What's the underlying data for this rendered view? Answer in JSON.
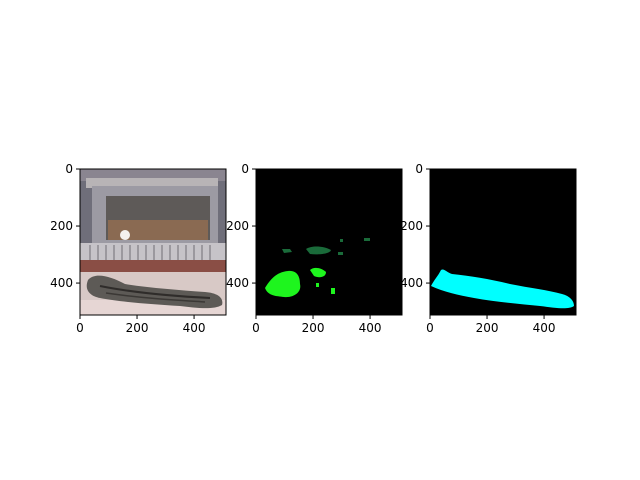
{
  "figure": {
    "panels": [
      {
        "content": "photo",
        "xticks": [
          "0",
          "200",
          "400"
        ],
        "yticks": [
          "0",
          "200",
          "400"
        ]
      },
      {
        "content": "mask",
        "xticks": [
          "0",
          "200",
          "400"
        ],
        "yticks": [
          "0",
          "200",
          "400"
        ]
      },
      {
        "content": "mask",
        "xticks": [
          "0",
          "200",
          "400"
        ],
        "yticks": [
          "0",
          "200",
          "400"
        ]
      }
    ]
  },
  "colors": {
    "mask_background": "#000000",
    "mask_bright_green": "#1ef51e",
    "mask_dark_green": "#1a6b3a",
    "mask_cyan": "#00ffff",
    "axis": "#000000"
  },
  "icons": {
    "photo": "cat-on-blanket-photo",
    "masks": "segmentation-mask"
  }
}
